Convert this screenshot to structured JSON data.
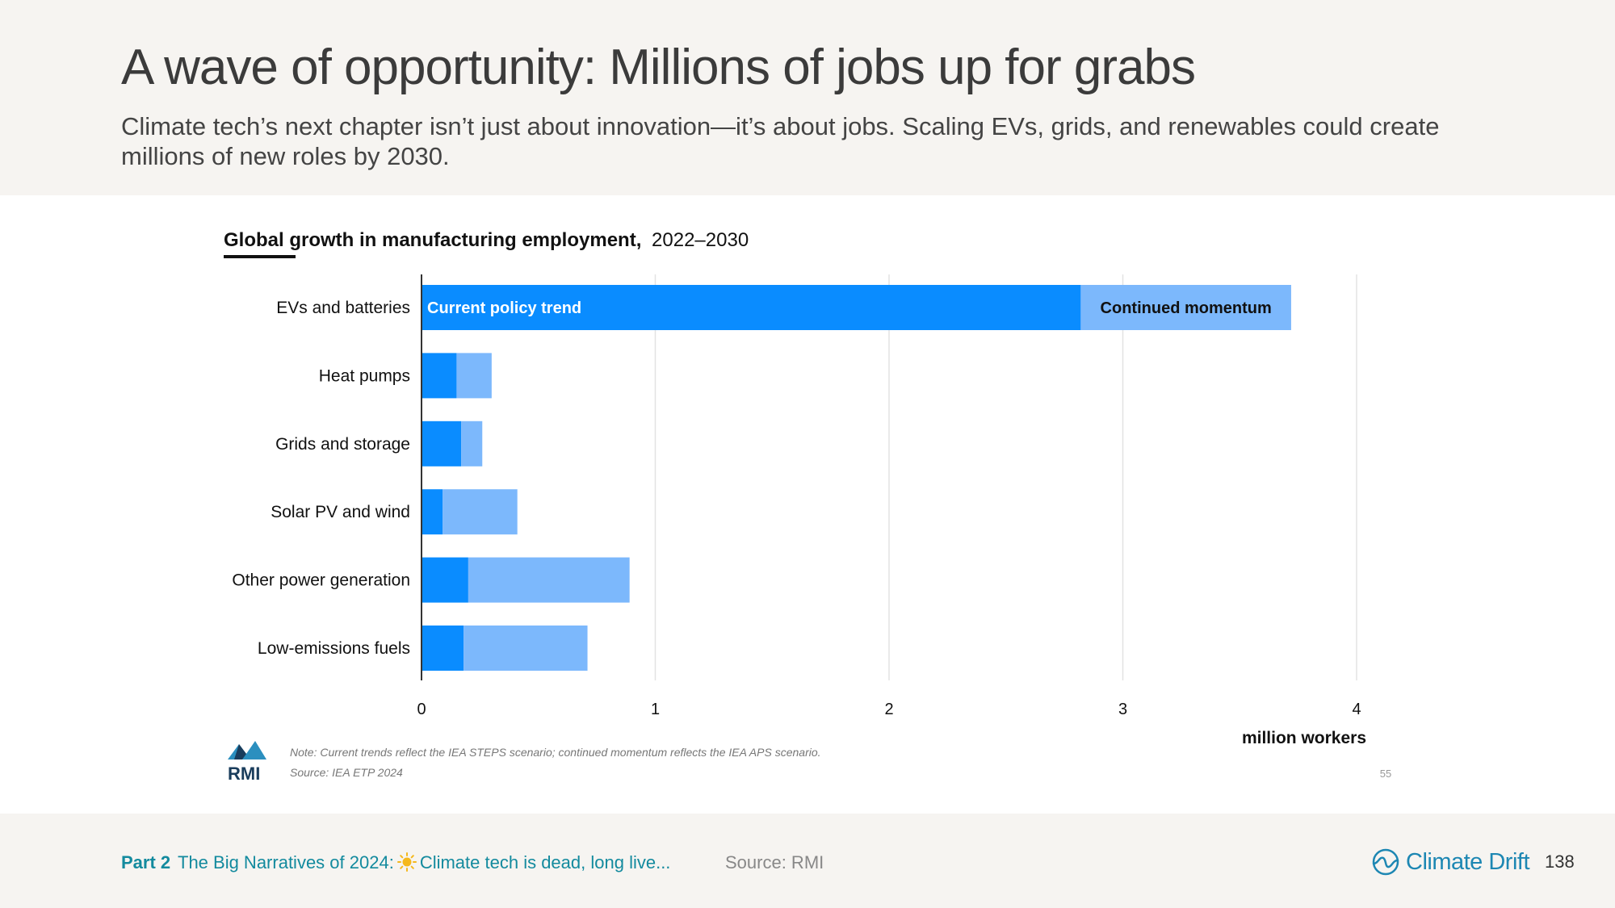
{
  "slide": {
    "title": "A wave of opportunity: Millions of jobs up for grabs",
    "subtitle": "Climate tech’s next chapter isn’t just about innovation—it’s about jobs. Scaling EVs, grids, and renewables could create millions of new roles by 2030."
  },
  "chart_data": {
    "type": "bar",
    "orientation": "horizontal",
    "stacked": true,
    "title": "Global growth in manufacturing employment,",
    "title_period": "2022–2030",
    "categories": [
      "EVs and batteries",
      "Heat pumps",
      "Grids and storage",
      "Solar PV and wind",
      "Other power generation",
      "Low-emissions fuels"
    ],
    "series": [
      {
        "name": "Current policy trend",
        "values": [
          2.82,
          0.15,
          0.17,
          0.09,
          0.2,
          0.18
        ],
        "color": "#0a8cff"
      },
      {
        "name": "Continued momentum",
        "values": [
          0.9,
          0.15,
          0.09,
          0.32,
          0.69,
          0.53
        ],
        "color": "#7cb8fc"
      }
    ],
    "xlim": [
      0,
      4
    ],
    "xticks": [
      0,
      1,
      2,
      3,
      4
    ],
    "xlabel": "million workers",
    "grid": true,
    "note": "Note: Current trends reflect the IEA STEPS scenario; continued momentum reflects the IEA APS scenario.",
    "source": "Source: IEA ETP 2024",
    "logo_text": "RMI",
    "page_mark": "55"
  },
  "footer": {
    "part": "Part 2",
    "narrative_before": "The Big Narratives of 2024:",
    "narrative_icon": "sun-icon",
    "narrative_after": "Climate tech is dead, long live...",
    "source": "Source: RMI",
    "brand": "Climate Drift",
    "page_number": "138"
  }
}
